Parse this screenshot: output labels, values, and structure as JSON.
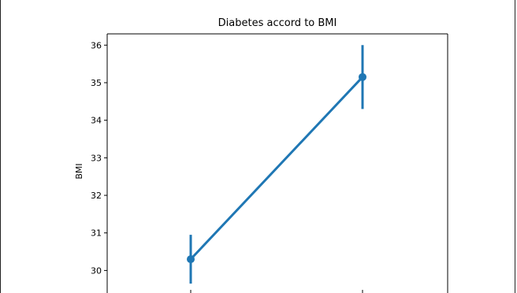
{
  "chart_data": {
    "type": "line",
    "title": "Diabetes accord to BMI",
    "xlabel": "",
    "ylabel": "BMI",
    "ylim": [
      29.4,
      36.3
    ],
    "yticks": [
      30,
      31,
      32,
      33,
      34,
      35,
      36
    ],
    "categories": [
      "",
      ""
    ],
    "series": [
      {
        "values": [
          30.3,
          35.15
        ],
        "error_low": [
          29.65,
          34.3
        ],
        "error_high": [
          30.95,
          36.0
        ]
      }
    ],
    "grid": false,
    "color": "#1f77b4"
  }
}
